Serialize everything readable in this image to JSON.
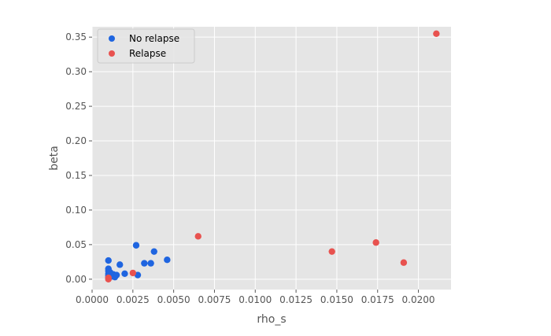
{
  "chart_data": {
    "type": "scatter",
    "title": "",
    "xlabel": "rho_s",
    "ylabel": "beta",
    "xlim": [
      0.0,
      0.022
    ],
    "ylim": [
      -0.015,
      0.365
    ],
    "grid": true,
    "legend_position": "top-left",
    "x_ticks": [
      {
        "value": 0.0,
        "label": "0.0000"
      },
      {
        "value": 0.0025,
        "label": "0.0025"
      },
      {
        "value": 0.005,
        "label": "0.0050"
      },
      {
        "value": 0.0075,
        "label": "0.0075"
      },
      {
        "value": 0.01,
        "label": "0.0100"
      },
      {
        "value": 0.0125,
        "label": "0.0125"
      },
      {
        "value": 0.015,
        "label": "0.0150"
      },
      {
        "value": 0.0175,
        "label": "0.0175"
      },
      {
        "value": 0.02,
        "label": "0.0200"
      }
    ],
    "y_ticks": [
      {
        "value": 0.0,
        "label": "0.00"
      },
      {
        "value": 0.05,
        "label": "0.05"
      },
      {
        "value": 0.1,
        "label": "0.10"
      },
      {
        "value": 0.15,
        "label": "0.15"
      },
      {
        "value": 0.2,
        "label": "0.20"
      },
      {
        "value": 0.25,
        "label": "0.25"
      },
      {
        "value": 0.3,
        "label": "0.30"
      },
      {
        "value": 0.35,
        "label": "0.35"
      }
    ],
    "series": [
      {
        "name": "No relapse",
        "color": "#1f65e0",
        "points": [
          {
            "x": 0.001,
            "y": 0.027
          },
          {
            "x": 0.001,
            "y": 0.015
          },
          {
            "x": 0.001,
            "y": 0.012
          },
          {
            "x": 0.001,
            "y": 0.008
          },
          {
            "x": 0.001,
            "y": 0.005
          },
          {
            "x": 0.001,
            "y": 0.002
          },
          {
            "x": 0.0011,
            "y": 0.01
          },
          {
            "x": 0.0012,
            "y": 0.004
          },
          {
            "x": 0.0013,
            "y": 0.007
          },
          {
            "x": 0.0014,
            "y": 0.003
          },
          {
            "x": 0.0015,
            "y": 0.006
          },
          {
            "x": 0.0017,
            "y": 0.021
          },
          {
            "x": 0.002,
            "y": 0.008
          },
          {
            "x": 0.0027,
            "y": 0.049
          },
          {
            "x": 0.0028,
            "y": 0.006
          },
          {
            "x": 0.0032,
            "y": 0.023
          },
          {
            "x": 0.0036,
            "y": 0.023
          },
          {
            "x": 0.0038,
            "y": 0.04
          },
          {
            "x": 0.0046,
            "y": 0.028
          }
        ]
      },
      {
        "name": "Relapse",
        "color": "#e8524f",
        "points": [
          {
            "x": 0.001,
            "y": 0.0
          },
          {
            "x": 0.001,
            "y": 0.002
          },
          {
            "x": 0.0025,
            "y": 0.009
          },
          {
            "x": 0.0065,
            "y": 0.062
          },
          {
            "x": 0.0147,
            "y": 0.04
          },
          {
            "x": 0.0174,
            "y": 0.053
          },
          {
            "x": 0.0191,
            "y": 0.024
          },
          {
            "x": 0.0211,
            "y": 0.355
          }
        ]
      }
    ]
  }
}
